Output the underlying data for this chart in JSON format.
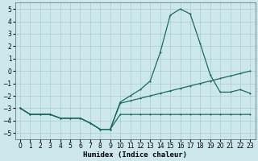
{
  "xlabel": "Humidex (Indice chaleur)",
  "background_color": "#cce8ec",
  "grid_color": "#aaccd4",
  "line_color": "#1a6a60",
  "xlim": [
    -0.5,
    23.5
  ],
  "ylim": [
    -5.5,
    5.5
  ],
  "xticks": [
    0,
    1,
    2,
    3,
    4,
    5,
    6,
    7,
    8,
    9,
    10,
    11,
    12,
    13,
    14,
    15,
    16,
    17,
    18,
    19,
    20,
    21,
    22,
    23
  ],
  "yticks": [
    -5,
    -4,
    -3,
    -2,
    -1,
    0,
    1,
    2,
    3,
    4,
    5
  ],
  "line_peak_x": [
    0,
    1,
    2,
    3,
    4,
    5,
    6,
    7,
    8,
    9,
    10,
    11,
    12,
    13,
    14,
    15,
    16,
    17,
    18,
    19,
    20,
    21,
    22,
    23
  ],
  "line_peak_y": [
    -3,
    -3.5,
    -3.5,
    -3.5,
    -3.8,
    -3.8,
    -3.8,
    -4.2,
    -4.7,
    -4.7,
    -2.5,
    -2.0,
    -1.5,
    -0.8,
    1.5,
    4.5,
    5.0,
    4.6,
    2.2,
    -0.3,
    -1.7,
    -1.7,
    -1.5,
    -1.8
  ],
  "line_mid_x": [
    0,
    1,
    2,
    3,
    4,
    5,
    6,
    7,
    8,
    9,
    10,
    11,
    12,
    13,
    14,
    15,
    16,
    17,
    18,
    19,
    20,
    21,
    22,
    23
  ],
  "line_mid_y": [
    -3,
    -3.5,
    -3.5,
    -3.5,
    -3.8,
    -3.8,
    -3.8,
    -4.2,
    -4.7,
    -4.7,
    -2.6,
    -2.4,
    -2.2,
    -2.0,
    -1.8,
    -1.6,
    -1.4,
    -1.2,
    -1.0,
    -0.8,
    -0.6,
    -0.4,
    -0.2,
    0.0
  ],
  "line_flat_x": [
    0,
    1,
    2,
    3,
    4,
    5,
    6,
    7,
    8,
    9,
    10,
    11,
    12,
    13,
    14,
    15,
    16,
    17,
    18,
    19,
    20,
    21,
    22,
    23
  ],
  "line_flat_y": [
    -3,
    -3.5,
    -3.5,
    -3.5,
    -3.8,
    -3.8,
    -3.8,
    -4.2,
    -4.7,
    -4.7,
    -3.5,
    -3.5,
    -3.5,
    -3.5,
    -3.5,
    -3.5,
    -3.5,
    -3.5,
    -3.5,
    -3.5,
    -3.5,
    -3.5,
    -3.5,
    -3.5
  ]
}
